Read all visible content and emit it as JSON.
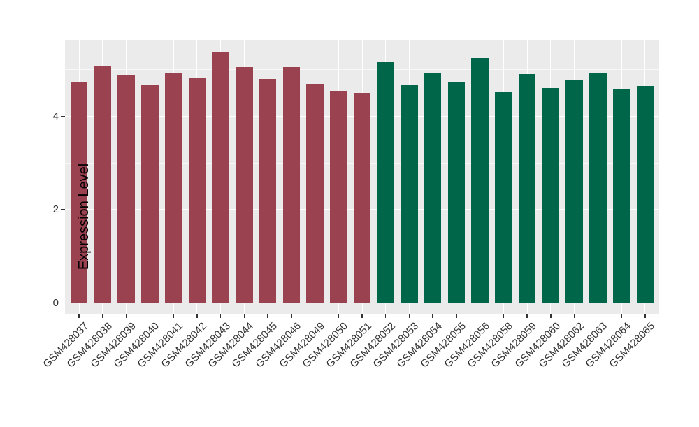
{
  "chart_data": {
    "type": "bar",
    "title": "",
    "xlabel": "",
    "ylabel": "Expression Level",
    "legend": "none",
    "grid": "on",
    "panel_bg": "#EBEBEB",
    "grid_color": "#FFFFFF",
    "axis_text_color": "#333333",
    "ylim": [
      0,
      5.64
    ],
    "ytick_labels": [
      "0",
      "2",
      "4"
    ],
    "ytick_values": [
      0,
      2,
      4
    ],
    "minor_gridline_values": [
      1,
      3,
      5
    ],
    "categories": [
      "GSM428037",
      "GSM428038",
      "GSM428039",
      "GSM428040",
      "GSM428041",
      "GSM428042",
      "GSM428043",
      "GSM428044",
      "GSM428045",
      "GSM428046",
      "GSM428049",
      "GSM428050",
      "GSM428051",
      "GSM428052",
      "GSM428053",
      "GSM428054",
      "GSM428055",
      "GSM428056",
      "GSM428058",
      "GSM428059",
      "GSM428060",
      "GSM428062",
      "GSM428063",
      "GSM428064",
      "GSM428065"
    ],
    "values": [
      4.74,
      5.09,
      4.88,
      4.68,
      4.94,
      4.81,
      5.37,
      5.06,
      4.8,
      5.06,
      4.7,
      4.55,
      4.5,
      5.16,
      4.68,
      4.94,
      4.73,
      5.25,
      4.53,
      4.91,
      4.61,
      4.77,
      4.92,
      4.59,
      4.65
    ],
    "group_of_bar": [
      "A",
      "A",
      "A",
      "A",
      "A",
      "A",
      "A",
      "A",
      "A",
      "A",
      "A",
      "A",
      "A",
      "B",
      "B",
      "B",
      "B",
      "B",
      "B",
      "B",
      "B",
      "B",
      "B",
      "B",
      "B"
    ],
    "group_colors": {
      "A": "#9B4250",
      "B": "#006649"
    }
  }
}
